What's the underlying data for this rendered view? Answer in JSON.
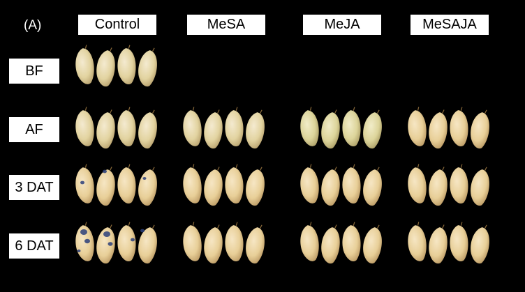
{
  "panel_label": "(A)",
  "treatments": [
    "Control",
    "MeSA",
    "MeJA",
    "MeSAJA"
  ],
  "stages": [
    "BF",
    "AF",
    "3 DAT",
    "6 DAT"
  ],
  "colors": {
    "background": "#000000",
    "label_box": "#ffffff",
    "fruit_fresh": "#e6d9a8",
    "fruit_ripe": "#ead3a2",
    "disease_spot": "#2b3f7a"
  }
}
